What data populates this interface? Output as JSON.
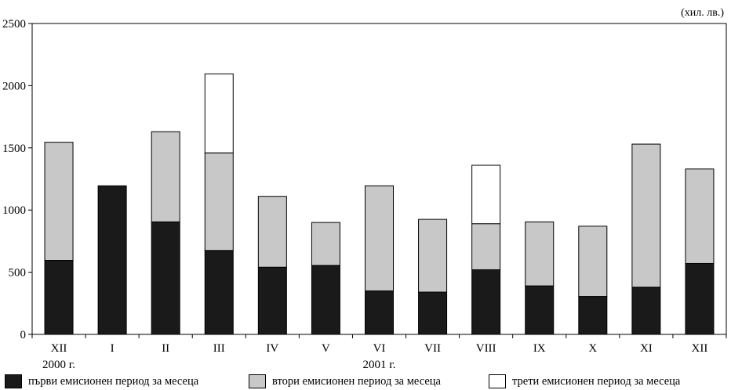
{
  "chart_data": {
    "type": "bar",
    "stacked": true,
    "unit_label": "(хил. лв.)",
    "categories": [
      "XII",
      "I",
      "II",
      "III",
      "IV",
      "V",
      "VI",
      "VII",
      "VIII",
      "IX",
      "X",
      "XI",
      "XII"
    ],
    "year_labels": [
      {
        "category_index": 0,
        "text": "2000 г."
      },
      {
        "category_index": 6,
        "text": "2001 г."
      }
    ],
    "ylim": [
      0,
      2500
    ],
    "yticks": [
      0,
      500,
      1000,
      1500,
      2000,
      2500
    ],
    "grid": false,
    "legend_position": "bottom",
    "series": [
      {
        "name": "първи емисионен период за месеца",
        "color": "#1a1a1a",
        "values": [
          595,
          1195,
          905,
          675,
          540,
          555,
          350,
          340,
          520,
          390,
          305,
          380,
          570
        ]
      },
      {
        "name": "втори емисионен период за месеца",
        "color": "#c8c8c8",
        "values": [
          950,
          0,
          725,
          785,
          570,
          345,
          845,
          585,
          370,
          515,
          565,
          1150,
          760
        ]
      },
      {
        "name": "трети емисионен период за месеца",
        "color": "#ffffff",
        "values": [
          0,
          0,
          0,
          635,
          0,
          0,
          0,
          0,
          470,
          0,
          0,
          0,
          0
        ]
      }
    ]
  }
}
